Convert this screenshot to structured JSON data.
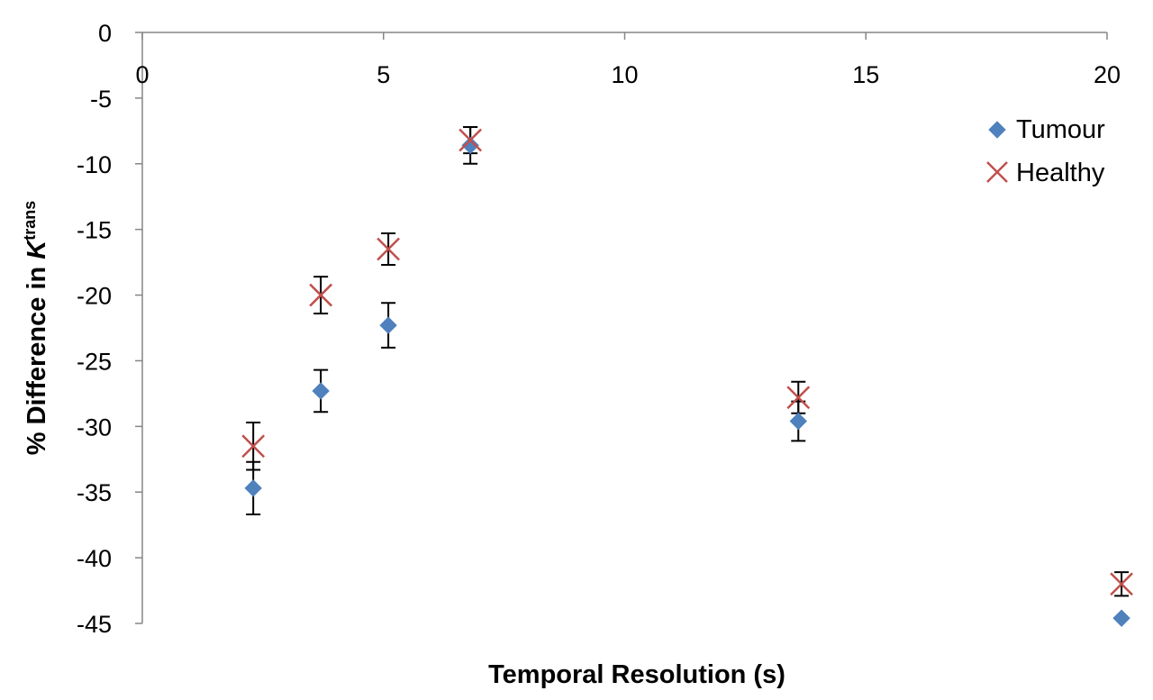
{
  "chart_data": {
    "type": "scatter",
    "title": "",
    "xlabel": "Temporal Resolution (s)",
    "ylabel": {
      "prefix": "% Difference in ",
      "symbol": "K",
      "superscript": "trans"
    },
    "xlim": [
      0,
      20
    ],
    "ylim": [
      -45,
      0
    ],
    "xticks": [
      0,
      5,
      10,
      15,
      20
    ],
    "yticks": [
      0,
      -5,
      -10,
      -15,
      -20,
      -25,
      -30,
      -35,
      -40,
      -45
    ],
    "xaxis_position": "top (at y = 0)",
    "grid": false,
    "legend_position": "right",
    "series": [
      {
        "name": "Tumour",
        "marker": "diamond",
        "color": "#4F81BD",
        "points": [
          {
            "x": 2.3,
            "y": -34.7,
            "err": 2.0
          },
          {
            "x": 3.7,
            "y": -27.3,
            "err": 1.6
          },
          {
            "x": 5.1,
            "y": -22.3,
            "err": 1.7
          },
          {
            "x": 6.8,
            "y": -8.6,
            "err": 1.4
          },
          {
            "x": 13.6,
            "y": -29.6,
            "err": 1.5
          },
          {
            "x": 20.3,
            "y": -44.6,
            "err": 0.0
          }
        ]
      },
      {
        "name": "Healthy",
        "marker": "x",
        "color": "#C0504D",
        "points": [
          {
            "x": 2.3,
            "y": -31.5,
            "err": 1.8
          },
          {
            "x": 3.7,
            "y": -20.0,
            "err": 1.4
          },
          {
            "x": 5.1,
            "y": -16.5,
            "err": 1.2
          },
          {
            "x": 6.8,
            "y": -8.2,
            "err": 1.0
          },
          {
            "x": 13.6,
            "y": -27.8,
            "err": 1.2
          },
          {
            "x": 20.3,
            "y": -42.0,
            "err": 0.9
          }
        ]
      }
    ]
  }
}
